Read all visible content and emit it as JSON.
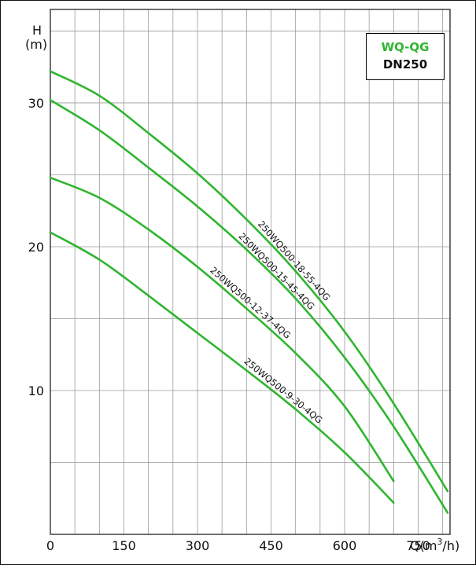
{
  "chart_data": {
    "type": "line",
    "legend": {
      "line1": "WQ-QG",
      "line2": "DN250",
      "placement": "top-right",
      "line1_color": "#2fb52f",
      "line2_color": "#111111"
    },
    "y_label_top": "H",
    "y_label_unit": "(m)",
    "x_label": "Q(m³/h)",
    "x_label_base": "Q(m",
    "x_label_sup": "3",
    "x_label_tail": "/h)",
    "x_ticks": [
      0,
      150,
      300,
      450,
      600,
      750
    ],
    "x_tick_labels": [
      "0",
      "150",
      "300",
      "450",
      "600",
      "750"
    ],
    "y_ticks": [
      10,
      20,
      30
    ],
    "y_tick_labels": [
      "10",
      "20",
      "30"
    ],
    "xlim": [
      0,
      815
    ],
    "ylim": [
      0,
      36.5
    ],
    "grid": true,
    "curve_color": "#2fb52f",
    "series": [
      {
        "name": "250WQ500-18-55-4QG",
        "x": [
          0,
          100,
          200,
          300,
          400,
          500,
          600,
          700,
          810
        ],
        "y": [
          32.2,
          30.5,
          27.9,
          25.1,
          21.9,
          18.3,
          14.1,
          9.1,
          3.0
        ]
      },
      {
        "name": "250WQ500-15-45-4QG",
        "x": [
          0,
          100,
          200,
          300,
          400,
          500,
          600,
          700,
          810
        ],
        "y": [
          30.2,
          28.1,
          25.5,
          22.8,
          19.8,
          16.4,
          12.3,
          7.5,
          1.5
        ]
      },
      {
        "name": "250WQ500-12-37-4QG",
        "x": [
          0,
          100,
          200,
          300,
          400,
          500,
          600,
          700
        ],
        "y": [
          24.8,
          23.4,
          21.2,
          18.6,
          15.7,
          12.6,
          8.9,
          3.7
        ]
      },
      {
        "name": "250WQ500-9-30-4QG",
        "x": [
          0,
          100,
          200,
          300,
          400,
          500,
          600,
          700
        ],
        "y": [
          21.0,
          19.1,
          16.6,
          14.0,
          11.4,
          8.7,
          5.7,
          2.2
        ]
      }
    ]
  }
}
